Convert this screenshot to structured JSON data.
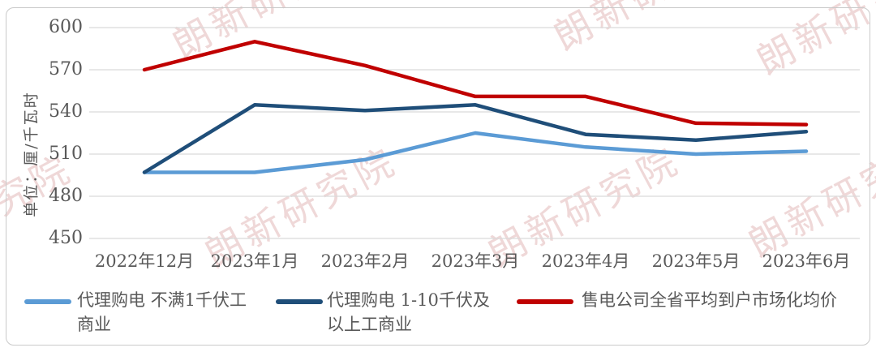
{
  "watermark": {
    "text": "朗新研究院"
  },
  "chart_data": {
    "type": "line",
    "title": "",
    "xlabel": "",
    "ylabel": "单位：厘/千瓦时",
    "categories": [
      "2022年12月",
      "2023年1月",
      "2023年2月",
      "2023年3月",
      "2023年4月",
      "2023年5月",
      "2023年6月"
    ],
    "series": [
      {
        "name": "代理购电 不满1千伏工商业",
        "color": "#5B9BD5",
        "values": [
          497,
          497,
          506,
          525,
          515,
          510,
          512
        ]
      },
      {
        "name": "代理购电 1-10千伏及以上工商业",
        "color": "#1F4E79",
        "values": [
          497,
          545,
          541,
          545,
          524,
          520,
          526
        ]
      },
      {
        "name": "售电公司全省平均到户市场化均价",
        "color": "#C00000",
        "values": [
          570,
          590,
          573,
          551,
          551,
          532,
          531
        ]
      }
    ],
    "ylim": [
      450,
      600
    ],
    "yticks": [
      450,
      480,
      510,
      540,
      570,
      600
    ],
    "grid": true,
    "gridline_color": "#D9D9D9",
    "axis_text_color": "#595959",
    "legend_position": "bottom"
  },
  "legend": {
    "items": [
      {
        "lines": [
          "代理购电 不满1千伏工",
          "商业"
        ],
        "color": "#5B9BD5"
      },
      {
        "lines": [
          "代理购电 1-10千伏及",
          "以上工商业"
        ],
        "color": "#1F4E79"
      },
      {
        "lines": [
          "售电公司全省平均到户市场化均价"
        ],
        "color": "#C00000"
      }
    ]
  }
}
